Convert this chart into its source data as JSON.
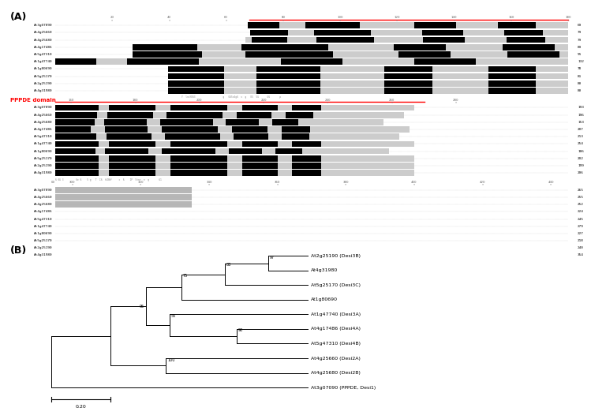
{
  "panel_A_label": "(A)",
  "panel_B_label": "(B)",
  "seq_names": [
    "At3g07090",
    "At4g25660",
    "At4g25680",
    "At4g17486",
    "At5g47310",
    "At1g47740",
    "At1g80690",
    "At5g25170",
    "At2g25190",
    "At4g31980"
  ],
  "end_nums_1": [
    69,
    79,
    79,
    89,
    91,
    132,
    78,
    81,
    80,
    80
  ],
  "end_nums_2": [
    193,
    196,
    153,
    207,
    213,
    254,
    106,
    202,
    199,
    206
  ],
  "end_nums_3": [
    265,
    255,
    252,
    224,
    245,
    279,
    227,
    218,
    240,
    354
  ],
  "pppde_label": "PPPDE domain",
  "red_color": "#FF0000",
  "tree_taxa": [
    "At2g25190 (Desi3B)",
    "At4g31980",
    "At5g25170 (Desi3C)",
    "At1g80690",
    "At1g47740 (Desi3A)",
    "At4g17486 (Desi4A)",
    "At5g47310 (Desi4B)",
    "At4g25660 (Desi2A)",
    "At4g25680 (Desi2B)",
    "At3g07090 (PPPDE, Desi1)"
  ],
  "scale_bar_label": "0.20",
  "bg_color": "#FFFFFF"
}
